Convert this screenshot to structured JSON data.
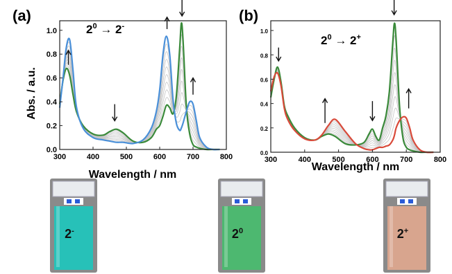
{
  "chart_data": [
    {
      "type": "line",
      "panel_label": "(a)",
      "reaction": {
        "from_base": "2",
        "from_sup": "0",
        "to_base": "2",
        "to_sup": "-"
      },
      "xlabel": "Wavelength / nm",
      "ylabel": "Abs. / a.u.",
      "xlim": [
        300,
        800
      ],
      "ylim": [
        0,
        1.08
      ],
      "xticks": [
        "300",
        "400",
        "500",
        "600",
        "700",
        "800"
      ],
      "yticks": [
        "0.0",
        "0.2",
        "0.4",
        "0.6",
        "0.8",
        "1.0"
      ],
      "grid": false,
      "x": [
        300,
        310,
        320,
        330,
        340,
        350,
        370,
        400,
        430,
        450,
        470,
        490,
        520,
        550,
        575,
        590,
        600,
        610,
        620,
        630,
        640,
        650,
        660,
        665,
        670,
        680,
        690,
        700,
        710,
        720,
        740,
        760,
        780
      ],
      "series": [
        {
          "color": "#3a8a3a",
          "values": [
            0.38,
            0.58,
            0.68,
            0.62,
            0.46,
            0.32,
            0.2,
            0.13,
            0.12,
            0.15,
            0.17,
            0.14,
            0.07,
            0.06,
            0.1,
            0.17,
            0.2,
            0.28,
            0.37,
            0.35,
            0.3,
            0.45,
            0.85,
            1.06,
            0.92,
            0.36,
            0.13,
            0.04,
            0.02,
            0.01,
            0.0,
            0.0,
            0.0
          ]
        },
        {
          "color": "#4a90d9",
          "values": [
            0.35,
            0.6,
            0.86,
            0.92,
            0.66,
            0.36,
            0.18,
            0.1,
            0.08,
            0.07,
            0.06,
            0.06,
            0.05,
            0.08,
            0.18,
            0.32,
            0.5,
            0.8,
            0.95,
            0.8,
            0.42,
            0.22,
            0.16,
            0.18,
            0.22,
            0.32,
            0.4,
            0.38,
            0.24,
            0.1,
            0.02,
            0.0,
            0.0
          ]
        }
      ],
      "arrows": [
        {
          "x": 326,
          "y_from": 0.71,
          "y_to": 0.83
        },
        {
          "x": 465,
          "y_from": 0.38,
          "y_to": 0.24
        },
        {
          "x": 622,
          "y_from": 1.01,
          "y_to": 1.11
        },
        {
          "x": 667,
          "y_from": 1.28,
          "y_to": 1.12
        },
        {
          "x": 700,
          "y_from": 0.46,
          "y_to": 0.6
        }
      ]
    },
    {
      "type": "line",
      "panel_label": "(b)",
      "reaction": {
        "from_base": "2",
        "from_sup": "0",
        "to_base": "2",
        "to_sup": "+"
      },
      "xlabel": "Wavelength / nm",
      "ylabel": "",
      "xlim": [
        300,
        800
      ],
      "ylim": [
        0,
        1.08
      ],
      "xticks": [
        "300",
        "400",
        "500",
        "600",
        "700",
        "800"
      ],
      "yticks": [
        "0.0",
        "0.2",
        "0.4",
        "0.6",
        "0.8",
        "1.0"
      ],
      "grid": false,
      "x": [
        300,
        310,
        320,
        330,
        340,
        350,
        370,
        400,
        430,
        450,
        470,
        490,
        520,
        550,
        575,
        590,
        600,
        610,
        620,
        630,
        640,
        650,
        660,
        665,
        670,
        680,
        690,
        700,
        710,
        720,
        740,
        760,
        780
      ],
      "series": [
        {
          "color": "#3a8a3a",
          "values": [
            0.45,
            0.6,
            0.7,
            0.58,
            0.38,
            0.3,
            0.2,
            0.12,
            0.1,
            0.13,
            0.15,
            0.13,
            0.07,
            0.06,
            0.08,
            0.15,
            0.19,
            0.13,
            0.1,
            0.2,
            0.3,
            0.5,
            0.9,
            1.06,
            0.92,
            0.38,
            0.12,
            0.04,
            0.02,
            0.01,
            0.0,
            0.0,
            0.0
          ]
        },
        {
          "color": "#d94a3a",
          "values": [
            0.5,
            0.62,
            0.65,
            0.55,
            0.36,
            0.27,
            0.18,
            0.11,
            0.1,
            0.14,
            0.22,
            0.27,
            0.17,
            0.07,
            0.03,
            0.02,
            0.02,
            0.03,
            0.04,
            0.04,
            0.05,
            0.06,
            0.1,
            0.14,
            0.2,
            0.26,
            0.29,
            0.28,
            0.2,
            0.1,
            0.02,
            0.0,
            0.0
          ]
        }
      ],
      "arrows": [
        {
          "x": 323,
          "y_from": 0.86,
          "y_to": 0.75
        },
        {
          "x": 460,
          "y_from": 0.24,
          "y_to": 0.44
        },
        {
          "x": 600,
          "y_from": 0.42,
          "y_to": 0.26
        },
        {
          "x": 664,
          "y_from": 1.3,
          "y_to": 1.13
        },
        {
          "x": 707,
          "y_from": 0.36,
          "y_to": 0.52
        }
      ]
    }
  ],
  "vials": [
    {
      "base": "2",
      "sup": "-",
      "liquid_color": "#27c1b8"
    },
    {
      "base": "2",
      "sup": "0",
      "liquid_color": "#4db870"
    },
    {
      "base": "2",
      "sup": "+",
      "liquid_color": "#d8a58e"
    }
  ]
}
